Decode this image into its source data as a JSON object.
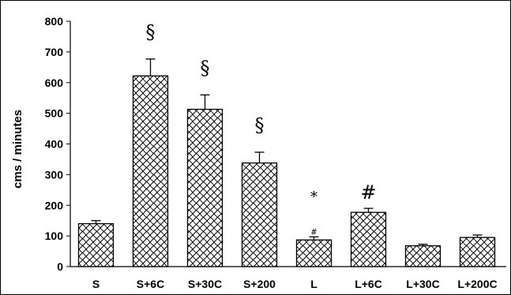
{
  "chart_data": {
    "type": "bar",
    "categories": [
      "S",
      "S+6C",
      "S+30C",
      "S+200",
      "L",
      "L+6C",
      "L+30C",
      "L+200C"
    ],
    "values": [
      140,
      622,
      513,
      338,
      87,
      177,
      68,
      95
    ],
    "errors": [
      10,
      55,
      47,
      35,
      10,
      13,
      5,
      8
    ],
    "annotations": [
      "",
      "§",
      "§",
      "§",
      "#",
      "#",
      "",
      ""
    ],
    "annotations_upper": [
      "",
      "",
      "",
      "",
      "*",
      "",
      "",
      ""
    ],
    "title": "",
    "xlabel": "",
    "ylabel": "cms / minutes",
    "ylim": [
      0,
      800
    ],
    "yticks": [
      "0",
      "100",
      "200",
      "300",
      "400",
      "500",
      "600",
      "700",
      "800"
    ],
    "bar_pattern": "crosshatch-wave",
    "colors": {
      "bar_fill": "#ffffff",
      "bar_stroke": "#000000",
      "hatch": "#000000"
    },
    "grid": false,
    "legend": "none"
  }
}
